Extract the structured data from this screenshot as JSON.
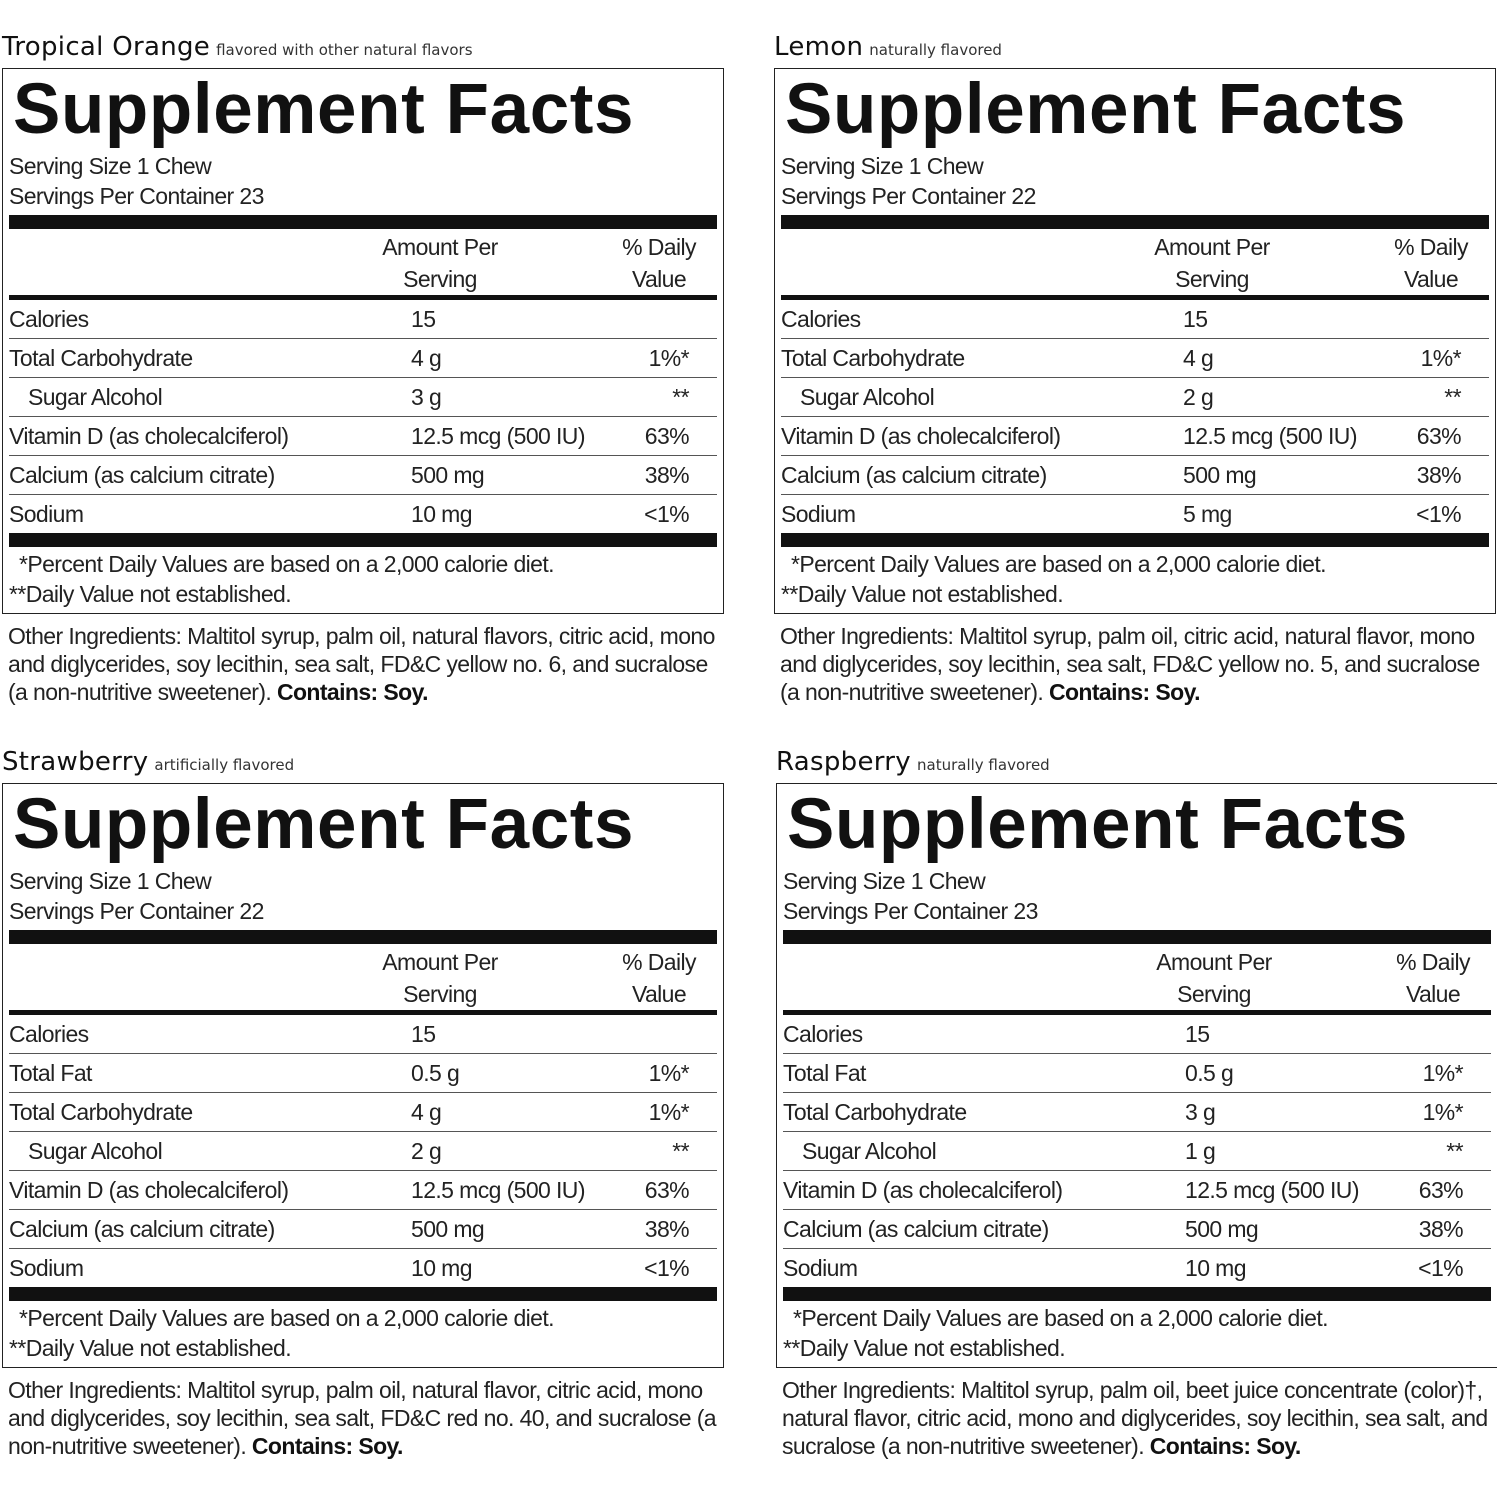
{
  "labels": [
    {
      "flavor": "Tropical Orange",
      "flavor_note": "flavored with other natural flavors",
      "title": "Supplement Facts",
      "serving_size": "Serving Size 1 Chew",
      "servings_per_container": "Servings Per Container 23",
      "col_amount": [
        "Amount Per",
        "Serving"
      ],
      "col_dv": [
        "% Daily",
        "Value"
      ],
      "rows": [
        {
          "name": "Calories",
          "amount": "15",
          "dv": ""
        },
        {
          "name": "Total Carbohydrate",
          "amount": "4 g",
          "dv": "1%*"
        },
        {
          "name": "Sugar Alcohol",
          "amount": "3 g",
          "dv": "**",
          "indent": true
        },
        {
          "name": "Vitamin D (as cholecalciferol)",
          "amount": "12.5 mcg (500 IU)",
          "dv": "63%"
        },
        {
          "name": "Calcium (as calcium citrate)",
          "amount": "500 mg",
          "dv": "38%"
        },
        {
          "name": "Sodium",
          "amount": "10 mg",
          "dv": "<1%"
        }
      ],
      "footnote1": "*Percent Daily Values are based on a 2,000 calorie diet.",
      "footnote2": "**Daily Value not established.",
      "ingredients": "Other Ingredients: Maltitol syrup, palm oil, natural flavors, citric acid, mono and diglycerides, soy lecithin, sea salt, FD&C yellow no. 6, and sucralose (a non-nutritive sweetener).",
      "contains": "Contains: Soy."
    },
    {
      "flavor": "Lemon",
      "flavor_note": "naturally flavored",
      "title": "Supplement Facts",
      "serving_size": "Serving Size 1 Chew",
      "servings_per_container": "Servings Per Container 22",
      "col_amount": [
        "Amount Per",
        "Serving"
      ],
      "col_dv": [
        "% Daily",
        "Value"
      ],
      "rows": [
        {
          "name": "Calories",
          "amount": "15",
          "dv": ""
        },
        {
          "name": "Total Carbohydrate",
          "amount": "4 g",
          "dv": "1%*"
        },
        {
          "name": "Sugar Alcohol",
          "amount": "2 g",
          "dv": "**",
          "indent": true
        },
        {
          "name": "Vitamin D (as cholecalciferol)",
          "amount": "12.5 mcg (500 IU)",
          "dv": "63%"
        },
        {
          "name": "Calcium (as calcium citrate)",
          "amount": "500 mg",
          "dv": "38%"
        },
        {
          "name": "Sodium",
          "amount": "5 mg",
          "dv": "<1%"
        }
      ],
      "footnote1": "*Percent Daily Values are based on a 2,000 calorie diet.",
      "footnote2": "**Daily Value not established.",
      "ingredients": "Other Ingredients: Maltitol syrup, palm oil, citric acid, natural flavor, mono and diglycerides, soy lecithin, sea salt, FD&C yellow no. 5, and sucralose (a non-nutritive sweetener).",
      "contains": "Contains: Soy."
    },
    {
      "flavor": "Strawberry",
      "flavor_note": "artificially flavored",
      "title": "Supplement Facts",
      "serving_size": "Serving Size 1 Chew",
      "servings_per_container": "Servings Per Container 22",
      "col_amount": [
        "Amount Per",
        "Serving"
      ],
      "col_dv": [
        "% Daily",
        "Value"
      ],
      "rows": [
        {
          "name": "Calories",
          "amount": "15",
          "dv": ""
        },
        {
          "name": "Total Fat",
          "amount": "0.5 g",
          "dv": "1%*"
        },
        {
          "name": "Total Carbohydrate",
          "amount": "4 g",
          "dv": "1%*"
        },
        {
          "name": "Sugar Alcohol",
          "amount": "2 g",
          "dv": "**",
          "indent": true
        },
        {
          "name": "Vitamin D (as cholecalciferol)",
          "amount": "12.5 mcg (500 IU)",
          "dv": "63%"
        },
        {
          "name": "Calcium (as calcium citrate)",
          "amount": "500 mg",
          "dv": "38%"
        },
        {
          "name": "Sodium",
          "amount": "10 mg",
          "dv": "<1%"
        }
      ],
      "footnote1": "*Percent Daily Values are based on a 2,000 calorie diet.",
      "footnote2": "**Daily Value not established.",
      "ingredients": "Other Ingredients: Maltitol syrup, palm oil, natural flavor, citric acid, mono and diglycerides, soy lecithin, sea salt, FD&C red no. 40, and sucralose (a non-nutritive sweetener).",
      "contains": "Contains: Soy."
    },
    {
      "flavor": "Raspberry",
      "flavor_note": "naturally flavored",
      "title": "Supplement Facts",
      "serving_size": "Serving Size 1 Chew",
      "servings_per_container": "Servings Per Container 23",
      "col_amount": [
        "Amount Per",
        "Serving"
      ],
      "col_dv": [
        "% Daily",
        "Value"
      ],
      "rows": [
        {
          "name": "Calories",
          "amount": "15",
          "dv": ""
        },
        {
          "name": "Total Fat",
          "amount": "0.5 g",
          "dv": "1%*"
        },
        {
          "name": "Total Carbohydrate",
          "amount": "3 g",
          "dv": "1%*"
        },
        {
          "name": "Sugar Alcohol",
          "amount": "1 g",
          "dv": "**",
          "indent": true
        },
        {
          "name": "Vitamin D (as cholecalciferol)",
          "amount": "12.5 mcg (500 IU)",
          "dv": "63%"
        },
        {
          "name": "Calcium (as calcium citrate)",
          "amount": "500 mg",
          "dv": "38%"
        },
        {
          "name": "Sodium",
          "amount": "10 mg",
          "dv": "<1%"
        }
      ],
      "footnote1": "*Percent Daily Values are based on a 2,000 calorie diet.",
      "footnote2": "**Daily Value not established.",
      "ingredients": "Other Ingredients: Maltitol syrup, palm oil, beet juice concentrate (color)†, natural flavor, citric acid, mono and diglycerides, soy lecithin, sea salt, and sucralose (a non-nutritive sweetener).",
      "contains": "Contains: Soy."
    }
  ]
}
